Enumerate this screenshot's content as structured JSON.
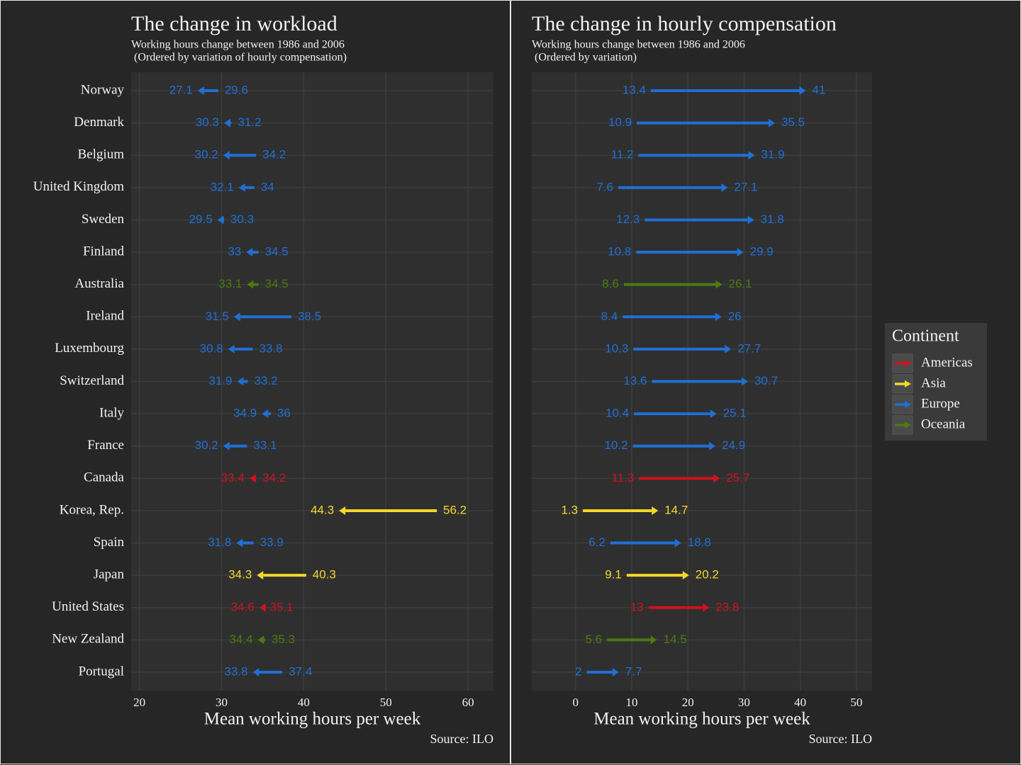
{
  "chart_data": [
    {
      "type": "arrow",
      "title": "The change in workload",
      "subtitle": [
        "Working hours change between 1986 and 2006",
        " (Ordered by variation of hourly compensation)"
      ],
      "x_label": "Mean working hours per week",
      "source": "Source: ILO",
      "categories": [
        "Norway",
        "Denmark",
        "Belgium",
        "United Kingdom",
        "Sweden",
        "Finland",
        "Australia",
        "Ireland",
        "Luxembourg",
        "Switzerland",
        "Italy",
        "France",
        "Canada",
        "Korea, Rep.",
        "Spain",
        "Japan",
        "United States",
        "New Zealand",
        "Portugal"
      ],
      "groups": [
        "Europe",
        "Europe",
        "Europe",
        "Europe",
        "Europe",
        "Europe",
        "Oceania",
        "Europe",
        "Europe",
        "Europe",
        "Europe",
        "Europe",
        "Americas",
        "Asia",
        "Europe",
        "Asia",
        "Americas",
        "Oceania",
        "Europe"
      ],
      "start": [
        29.6,
        31.2,
        34.2,
        34,
        30.3,
        34.5,
        34.5,
        38.5,
        33.8,
        33.2,
        36,
        33.1,
        34.2,
        56.2,
        33.9,
        40.3,
        35.1,
        35.3,
        37.4
      ],
      "end": [
        27.1,
        30.3,
        30.2,
        32.1,
        29.5,
        33,
        33.1,
        31.5,
        30.8,
        31.9,
        34.9,
        30.2,
        33.4,
        44.3,
        31.8,
        34.3,
        34.6,
        34.4,
        33.8
      ],
      "xlim": [
        19,
        63.1
      ],
      "xticks": [
        20,
        30,
        40,
        50,
        60
      ],
      "grid": true
    },
    {
      "type": "arrow",
      "title": "The change in hourly compensation",
      "subtitle": [
        "Working hours change between 1986 and 2006",
        " (Ordered by variation)"
      ],
      "x_label": "Mean working hours per week",
      "source": "Source: ILO",
      "categories": [
        "Norway",
        "Denmark",
        "Belgium",
        "United Kingdom",
        "Sweden",
        "Finland",
        "Australia",
        "Ireland",
        "Luxembourg",
        "Switzerland",
        "Italy",
        "France",
        "Canada",
        "Korea, Rep.",
        "Spain",
        "Japan",
        "United States",
        "New Zealand",
        "Portugal"
      ],
      "groups": [
        "Europe",
        "Europe",
        "Europe",
        "Europe",
        "Europe",
        "Europe",
        "Oceania",
        "Europe",
        "Europe",
        "Europe",
        "Europe",
        "Europe",
        "Americas",
        "Asia",
        "Europe",
        "Asia",
        "Americas",
        "Oceania",
        "Europe"
      ],
      "start": [
        13.4,
        10.9,
        11.2,
        7.6,
        12.3,
        10.8,
        8.6,
        8.4,
        10.3,
        13.6,
        10.4,
        10.2,
        11.3,
        1.3,
        6.2,
        9.1,
        13,
        5.6,
        2
      ],
      "end": [
        41,
        35.5,
        31.9,
        27.1,
        31.8,
        29.9,
        26.1,
        26,
        27.7,
        30.7,
        25.1,
        24.9,
        25.7,
        14.7,
        18.8,
        20.2,
        23.8,
        14.5,
        7.7
      ],
      "xlim": [
        -7.8,
        52.8
      ],
      "xticks": [
        0,
        10,
        20,
        30,
        40,
        50
      ],
      "grid": true,
      "legend": {
        "title": "Continent",
        "entries": [
          {
            "name": "Americas",
            "color": "#d0111f"
          },
          {
            "name": "Asia",
            "color": "#f3d82a"
          },
          {
            "name": "Europe",
            "color": "#1f6fd6"
          },
          {
            "name": "Oceania",
            "color": "#4b7a10"
          }
        ]
      }
    }
  ]
}
